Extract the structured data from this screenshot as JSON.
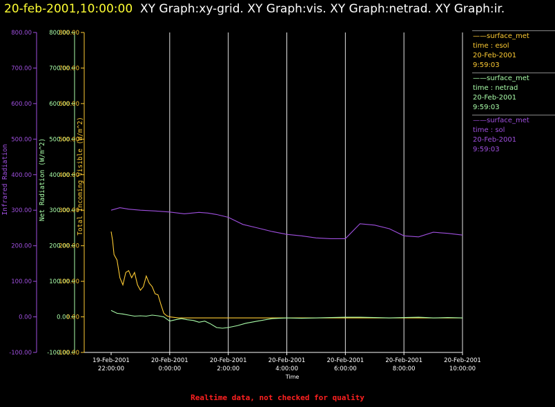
{
  "header": {
    "timestamp": "20-feb-2001,10:00:00",
    "graphs": "XY Graph:xy-grid.  XY Graph:vis.  XY Graph:netrad.  XY Graph:ir."
  },
  "footer": {
    "note": "Realtime data, not checked for quality"
  },
  "legend": [
    {
      "name": "surface_met",
      "var": "time : esol",
      "date": "20-Feb-2001",
      "time": "9:59:03",
      "color": "#ffcc33"
    },
    {
      "name": "surface_met",
      "var": "time : netrad",
      "date": "20-Feb-2001",
      "time": "9:59:03",
      "color": "#aaffaa"
    },
    {
      "name": "surface_met",
      "var": "time : sol",
      "date": "20-Feb-2001",
      "time": "9:59:03",
      "color": "#a050e0"
    }
  ],
  "chart_data": {
    "type": "line",
    "xlabel": "Time",
    "xlim": [
      0,
      12
    ],
    "x_ticks": [
      {
        "date": "19-Feb-2001",
        "time": "22:00:00"
      },
      {
        "date": "20-Feb-2001",
        "time": "0:00:00"
      },
      {
        "date": "20-Feb-2001",
        "time": "2:00:00"
      },
      {
        "date": "20-Feb-2001",
        "time": "4:00:00"
      },
      {
        "date": "20-Feb-2001",
        "time": "6:00:00"
      },
      {
        "date": "20-Feb-2001",
        "time": "8:00:00"
      },
      {
        "date": "20-Feb-2001",
        "time": "10:00:00"
      }
    ],
    "grid": true,
    "y_axes": [
      {
        "label": "Infrared Radiation",
        "color": "#a050e0",
        "ylim": [
          -100,
          800
        ],
        "ticks": [
          "-100.00",
          "0.00",
          "100.00",
          "200.00",
          "300.00",
          "400.00",
          "500.00",
          "600.00",
          "700.00",
          "800.00"
        ]
      },
      {
        "label": "Net Radiation (W/m^2)",
        "color": "#aaffaa",
        "ylim": [
          -100,
          800
        ],
        "ticks": [
          "-100.00",
          "0.00",
          "100.00",
          "200.00",
          "300.00",
          "400.00",
          "500.00",
          "600.00",
          "700.00",
          "800.00"
        ]
      },
      {
        "label": "Total Incoming Visible (W/m^2)",
        "color": "#ffcc33",
        "ylim": [
          -100,
          800
        ],
        "ticks": [
          "-100.00",
          "0.00",
          "100.00",
          "200.00",
          "300.00",
          "400.00",
          "500.00",
          "600.00",
          "700.00",
          "800.00"
        ]
      }
    ],
    "series": [
      {
        "color": "#ffcc33",
        "x": [
          0,
          0.05,
          0.1,
          0.2,
          0.3,
          0.4,
          0.5,
          0.6,
          0.7,
          0.8,
          0.9,
          1.0,
          1.1,
          1.2,
          1.3,
          1.4,
          1.5,
          1.6,
          1.7,
          1.8,
          1.9,
          2.0,
          2.1,
          2.2,
          2.3,
          2.4,
          2.5,
          2.6,
          2.7,
          2.8,
          2.9,
          3.0,
          3.3,
          3.6,
          4.0,
          4.5,
          5.0,
          6,
          7,
          8,
          9,
          10,
          11,
          12
        ],
        "y": [
          240,
          215,
          175,
          160,
          110,
          90,
          125,
          130,
          110,
          125,
          90,
          75,
          85,
          115,
          95,
          85,
          65,
          62,
          35,
          10,
          3,
          0,
          -1,
          -2,
          -3,
          -3,
          -3,
          -3,
          -3,
          -3,
          -3,
          -3,
          -3,
          -3,
          -3,
          -3,
          -3,
          -3,
          -3,
          -3,
          -3,
          -3,
          -3,
          -3
        ]
      },
      {
        "color": "#aaffaa",
        "x": [
          0,
          0.2,
          0.4,
          0.6,
          0.8,
          1.0,
          1.2,
          1.4,
          1.6,
          1.8,
          2.0,
          2.2,
          2.4,
          2.6,
          2.8,
          3.0,
          3.2,
          3.4,
          3.6,
          3.8,
          4.0,
          4.3,
          4.6,
          5.0,
          5.5,
          6,
          6.5,
          7,
          7.5,
          8,
          8.5,
          9,
          9.5,
          10,
          10.5,
          11,
          11.5,
          12
        ],
        "y": [
          18,
          10,
          8,
          5,
          2,
          3,
          2,
          5,
          3,
          0,
          -12,
          -8,
          -5,
          -8,
          -10,
          -15,
          -12,
          -20,
          -30,
          -32,
          -30,
          -25,
          -18,
          -12,
          -5,
          -3,
          -4,
          -3,
          -2,
          -1,
          -1,
          -2,
          -3,
          -2,
          -1,
          -3,
          -2,
          -3
        ]
      },
      {
        "color": "#a050e0",
        "x": [
          0,
          0.3,
          0.6,
          1.0,
          1.5,
          2.0,
          2.5,
          3.0,
          3.3,
          3.6,
          4.0,
          4.5,
          5.0,
          5.5,
          6.0,
          6.5,
          7.0,
          7.5,
          8.0,
          8.5,
          9.0,
          9.5,
          10,
          10.5,
          11,
          11.5,
          12
        ],
        "y": [
          300,
          307,
          303,
          300,
          298,
          295,
          290,
          294,
          292,
          288,
          280,
          260,
          250,
          240,
          232,
          228,
          222,
          220,
          220,
          262,
          258,
          248,
          228,
          225,
          238,
          235,
          230
        ]
      }
    ]
  }
}
